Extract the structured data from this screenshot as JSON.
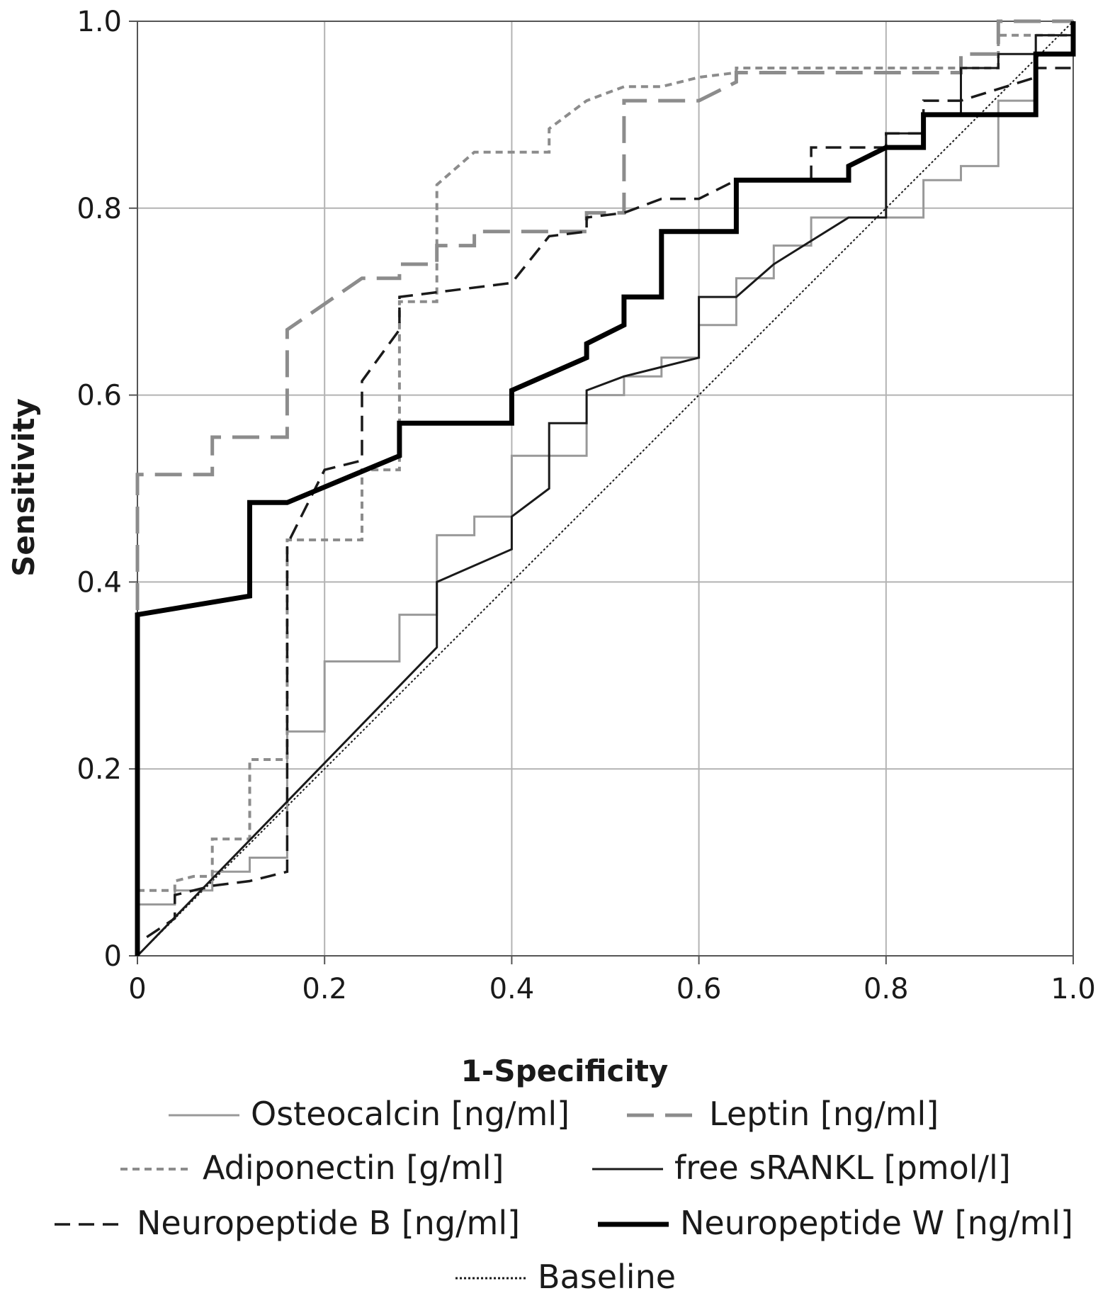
{
  "chart_data": {
    "type": "line",
    "title": "",
    "xlabel": "1-Specificity",
    "ylabel": "Sensitivity",
    "xlim": [
      0,
      1
    ],
    "ylim": [
      0,
      1
    ],
    "grid": true,
    "legend_position": "bottom",
    "x_ticks": [
      {
        "value": 0,
        "label": "0"
      },
      {
        "value": 0.2,
        "label": "0.2"
      },
      {
        "value": 0.4,
        "label": "0.4"
      },
      {
        "value": 0.6,
        "label": "0.6"
      },
      {
        "value": 0.8,
        "label": "0.8"
      },
      {
        "value": 1.0,
        "label": "1.0"
      }
    ],
    "y_ticks": [
      {
        "value": 0,
        "label": "0"
      },
      {
        "value": 0.2,
        "label": "0.2"
      },
      {
        "value": 0.4,
        "label": "0.4"
      },
      {
        "value": 0.6,
        "label": "0.6"
      },
      {
        "value": 0.8,
        "label": "0.8"
      },
      {
        "value": 1.0,
        "label": "1.0"
      }
    ],
    "series": [
      {
        "name": "Osteocalcin [ng/ml]",
        "color": "#999999",
        "style": "solid",
        "width": 3,
        "points": [
          [
            0,
            0
          ],
          [
            0,
            0.055
          ],
          [
            0.04,
            0.055
          ],
          [
            0.04,
            0.07
          ],
          [
            0.08,
            0.07
          ],
          [
            0.08,
            0.09
          ],
          [
            0.12,
            0.09
          ],
          [
            0.12,
            0.105
          ],
          [
            0.16,
            0.105
          ],
          [
            0.16,
            0.24
          ],
          [
            0.2,
            0.24
          ],
          [
            0.2,
            0.315
          ],
          [
            0.28,
            0.315
          ],
          [
            0.28,
            0.365
          ],
          [
            0.32,
            0.365
          ],
          [
            0.32,
            0.45
          ],
          [
            0.36,
            0.45
          ],
          [
            0.36,
            0.47
          ],
          [
            0.4,
            0.47
          ],
          [
            0.4,
            0.535
          ],
          [
            0.48,
            0.535
          ],
          [
            0.48,
            0.6
          ],
          [
            0.52,
            0.6
          ],
          [
            0.52,
            0.62
          ],
          [
            0.56,
            0.62
          ],
          [
            0.56,
            0.64
          ],
          [
            0.6,
            0.64
          ],
          [
            0.6,
            0.675
          ],
          [
            0.64,
            0.675
          ],
          [
            0.64,
            0.725
          ],
          [
            0.68,
            0.725
          ],
          [
            0.68,
            0.76
          ],
          [
            0.72,
            0.76
          ],
          [
            0.72,
            0.79
          ],
          [
            0.84,
            0.79
          ],
          [
            0.84,
            0.83
          ],
          [
            0.88,
            0.83
          ],
          [
            0.88,
            0.845
          ],
          [
            0.92,
            0.845
          ],
          [
            0.92,
            0.915
          ],
          [
            0.96,
            0.915
          ],
          [
            0.96,
            0.985
          ],
          [
            1,
            0.985
          ],
          [
            1,
            1
          ]
        ]
      },
      {
        "name": "Leptin [ng/ml]",
        "color": "#8c8c8c",
        "style": "longdash",
        "width": 5,
        "points": [
          [
            0,
            0.37
          ],
          [
            0,
            0.515
          ],
          [
            0.08,
            0.515
          ],
          [
            0.08,
            0.555
          ],
          [
            0.16,
            0.555
          ],
          [
            0.16,
            0.67
          ],
          [
            0.24,
            0.725
          ],
          [
            0.28,
            0.725
          ],
          [
            0.28,
            0.74
          ],
          [
            0.32,
            0.74
          ],
          [
            0.32,
            0.76
          ],
          [
            0.36,
            0.76
          ],
          [
            0.36,
            0.775
          ],
          [
            0.48,
            0.775
          ],
          [
            0.48,
            0.795
          ],
          [
            0.52,
            0.795
          ],
          [
            0.52,
            0.915
          ],
          [
            0.6,
            0.915
          ],
          [
            0.64,
            0.935
          ],
          [
            0.64,
            0.945
          ],
          [
            0.88,
            0.945
          ],
          [
            0.88,
            0.965
          ],
          [
            0.92,
            0.965
          ],
          [
            0.92,
            1
          ],
          [
            1,
            1
          ]
        ]
      },
      {
        "name": "Adiponectin [g/ml]",
        "color": "#8c8c8c",
        "style": "shortdash",
        "width": 4,
        "points": [
          [
            0,
            0.07
          ],
          [
            0.04,
            0.07
          ],
          [
            0.04,
            0.08
          ],
          [
            0.06,
            0.085
          ],
          [
            0.08,
            0.085
          ],
          [
            0.08,
            0.125
          ],
          [
            0.12,
            0.125
          ],
          [
            0.12,
            0.21
          ],
          [
            0.16,
            0.21
          ],
          [
            0.16,
            0.445
          ],
          [
            0.24,
            0.445
          ],
          [
            0.24,
            0.52
          ],
          [
            0.28,
            0.52
          ],
          [
            0.28,
            0.7
          ],
          [
            0.32,
            0.7
          ],
          [
            0.32,
            0.825
          ],
          [
            0.36,
            0.86
          ],
          [
            0.44,
            0.86
          ],
          [
            0.44,
            0.885
          ],
          [
            0.48,
            0.915
          ],
          [
            0.52,
            0.93
          ],
          [
            0.56,
            0.93
          ],
          [
            0.6,
            0.94
          ],
          [
            0.64,
            0.945
          ],
          [
            0.64,
            0.95
          ],
          [
            0.92,
            0.95
          ],
          [
            0.92,
            0.985
          ],
          [
            1,
            0.985
          ]
        ]
      },
      {
        "name": "free sRANKL [pmol/l]",
        "color": "#1a1a1a",
        "style": "solid",
        "width": 3,
        "points": [
          [
            0,
            0
          ],
          [
            0.32,
            0.33
          ],
          [
            0.32,
            0.4
          ],
          [
            0.4,
            0.435
          ],
          [
            0.4,
            0.47
          ],
          [
            0.44,
            0.5
          ],
          [
            0.44,
            0.57
          ],
          [
            0.48,
            0.57
          ],
          [
            0.48,
            0.605
          ],
          [
            0.52,
            0.62
          ],
          [
            0.56,
            0.63
          ],
          [
            0.6,
            0.64
          ],
          [
            0.6,
            0.705
          ],
          [
            0.64,
            0.705
          ],
          [
            0.68,
            0.74
          ],
          [
            0.76,
            0.79
          ],
          [
            0.8,
            0.79
          ],
          [
            0.8,
            0.88
          ],
          [
            0.84,
            0.88
          ],
          [
            0.84,
            0.9
          ],
          [
            0.88,
            0.9
          ],
          [
            0.88,
            0.95
          ],
          [
            0.92,
            0.95
          ],
          [
            0.92,
            0.965
          ],
          [
            0.96,
            0.965
          ],
          [
            0.96,
            0.985
          ],
          [
            1,
            0.985
          ]
        ]
      },
      {
        "name": "Neuropeptide B [ng/ml]",
        "color": "#1a1a1a",
        "style": "dash",
        "width": 3.5,
        "points": [
          [
            0.01,
            0.02
          ],
          [
            0.04,
            0.04
          ],
          [
            0.04,
            0.065
          ],
          [
            0.08,
            0.075
          ],
          [
            0.12,
            0.08
          ],
          [
            0.16,
            0.09
          ],
          [
            0.16,
            0.44
          ],
          [
            0.2,
            0.52
          ],
          [
            0.24,
            0.53
          ],
          [
            0.24,
            0.615
          ],
          [
            0.28,
            0.67
          ],
          [
            0.28,
            0.705
          ],
          [
            0.32,
            0.71
          ],
          [
            0.4,
            0.72
          ],
          [
            0.44,
            0.77
          ],
          [
            0.48,
            0.775
          ],
          [
            0.48,
            0.79
          ],
          [
            0.52,
            0.795
          ],
          [
            0.56,
            0.81
          ],
          [
            0.6,
            0.81
          ],
          [
            0.64,
            0.83
          ],
          [
            0.72,
            0.83
          ],
          [
            0.72,
            0.865
          ],
          [
            0.8,
            0.865
          ],
          [
            0.8,
            0.88
          ],
          [
            0.84,
            0.88
          ],
          [
            0.84,
            0.915
          ],
          [
            0.88,
            0.915
          ],
          [
            0.96,
            0.94
          ],
          [
            0.96,
            0.95
          ],
          [
            1,
            0.95
          ]
        ]
      },
      {
        "name": "Neuropeptide W [ng/ml]",
        "color": "#000000",
        "style": "solid",
        "width": 7,
        "points": [
          [
            0,
            0
          ],
          [
            0,
            0.365
          ],
          [
            0.12,
            0.385
          ],
          [
            0.12,
            0.485
          ],
          [
            0.16,
            0.485
          ],
          [
            0.28,
            0.535
          ],
          [
            0.28,
            0.57
          ],
          [
            0.4,
            0.57
          ],
          [
            0.4,
            0.605
          ],
          [
            0.48,
            0.64
          ],
          [
            0.48,
            0.655
          ],
          [
            0.52,
            0.675
          ],
          [
            0.52,
            0.705
          ],
          [
            0.56,
            0.705
          ],
          [
            0.56,
            0.775
          ],
          [
            0.64,
            0.775
          ],
          [
            0.64,
            0.83
          ],
          [
            0.76,
            0.83
          ],
          [
            0.76,
            0.845
          ],
          [
            0.8,
            0.865
          ],
          [
            0.84,
            0.865
          ],
          [
            0.84,
            0.9
          ],
          [
            0.96,
            0.9
          ],
          [
            0.96,
            0.965
          ],
          [
            1,
            0.965
          ],
          [
            1,
            1
          ]
        ]
      },
      {
        "name": "Baseline",
        "color": "#1a1a1a",
        "style": "dotted",
        "width": 2,
        "points": [
          [
            0,
            0
          ],
          [
            1,
            1
          ]
        ]
      }
    ]
  }
}
